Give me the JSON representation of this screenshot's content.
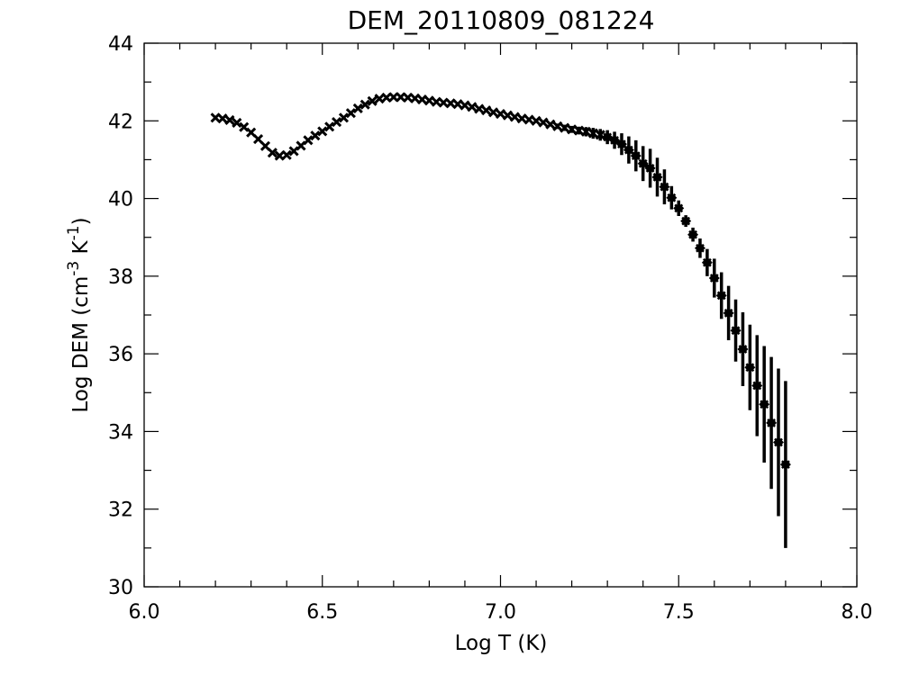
{
  "chart_data": {
    "type": "scatter",
    "title": "DEM_20110809_081224",
    "xlabel": "Log T (K)",
    "ylabel_parts": [
      "Log DEM (cm",
      "-3",
      " K",
      "-1",
      ")"
    ],
    "xlim": [
      6.0,
      8.0
    ],
    "ylim": [
      30,
      44
    ],
    "x_ticks": [
      "6.0",
      "6.5",
      "7.0",
      "7.5",
      "8.0"
    ],
    "x_tick_values": [
      6.0,
      6.5,
      7.0,
      7.5,
      8.0
    ],
    "y_ticks": [
      "30",
      "32",
      "34",
      "36",
      "38",
      "40",
      "42",
      "44"
    ],
    "y_tick_values": [
      30,
      32,
      34,
      36,
      38,
      40,
      42,
      44
    ],
    "grid": false,
    "marker_color": "#000000",
    "series": [
      {
        "marker": "x",
        "points": [
          [
            6.2,
            42.08,
            0.05
          ],
          [
            6.22,
            42.06,
            0.05
          ],
          [
            6.24,
            42.02,
            0.05
          ],
          [
            6.26,
            41.95,
            0.05
          ],
          [
            6.28,
            41.84,
            0.05
          ],
          [
            6.3,
            41.7,
            0.05
          ],
          [
            6.32,
            41.53,
            0.05
          ],
          [
            6.34,
            41.35,
            0.05
          ],
          [
            6.36,
            41.18,
            0.05
          ],
          [
            6.38,
            41.1,
            0.05
          ],
          [
            6.4,
            41.12,
            0.05
          ],
          [
            6.42,
            41.22,
            0.05
          ],
          [
            6.44,
            41.36,
            0.05
          ],
          [
            6.46,
            41.5,
            0.05
          ],
          [
            6.48,
            41.62,
            0.05
          ],
          [
            6.5,
            41.73,
            0.05
          ],
          [
            6.52,
            41.85,
            0.05
          ],
          [
            6.54,
            41.97,
            0.05
          ],
          [
            6.56,
            42.08,
            0.05
          ],
          [
            6.58,
            42.2,
            0.05
          ],
          [
            6.6,
            42.32,
            0.05
          ],
          [
            6.62,
            42.42,
            0.05
          ],
          [
            6.64,
            42.51,
            0.05
          ],
          [
            6.66,
            42.57,
            0.05
          ],
          [
            6.68,
            42.6,
            0.05
          ],
          [
            6.7,
            42.61,
            0.05
          ],
          [
            6.72,
            42.61,
            0.05
          ],
          [
            6.74,
            42.6,
            0.05
          ],
          [
            6.76,
            42.58,
            0.05
          ],
          [
            6.78,
            42.55,
            0.05
          ],
          [
            6.8,
            42.52,
            0.05
          ],
          [
            6.82,
            42.49,
            0.05
          ],
          [
            6.84,
            42.47,
            0.05
          ],
          [
            6.86,
            42.45,
            0.05
          ],
          [
            6.88,
            42.43,
            0.05
          ],
          [
            6.9,
            42.4,
            0.05
          ],
          [
            6.92,
            42.36,
            0.05
          ],
          [
            6.94,
            42.31,
            0.05
          ],
          [
            6.96,
            42.27,
            0.05
          ],
          [
            6.98,
            42.22,
            0.05
          ],
          [
            7.0,
            42.18,
            0.05
          ],
          [
            7.02,
            42.14,
            0.05
          ],
          [
            7.04,
            42.1,
            0.05
          ],
          [
            7.06,
            42.06,
            0.05
          ],
          [
            7.08,
            42.03,
            0.05
          ],
          [
            7.1,
            42.0,
            0.05
          ],
          [
            7.12,
            41.96,
            0.06
          ],
          [
            7.14,
            41.91,
            0.06
          ],
          [
            7.16,
            41.86,
            0.07
          ],
          [
            7.18,
            41.82,
            0.08
          ],
          [
            7.2,
            41.78,
            0.09
          ],
          [
            7.22,
            41.75,
            0.1
          ],
          [
            7.24,
            41.72,
            0.12
          ],
          [
            7.26,
            41.68,
            0.14
          ],
          [
            7.28,
            41.64,
            0.15
          ]
        ]
      },
      {
        "marker": "diamond",
        "points": [
          [
            7.3,
            41.58,
            0.18
          ],
          [
            7.32,
            41.5,
            0.22
          ],
          [
            7.34,
            41.4,
            0.28
          ],
          [
            7.36,
            41.25,
            0.35
          ],
          [
            7.38,
            41.1,
            0.4
          ],
          [
            7.4,
            40.9,
            0.45
          ],
          [
            7.42,
            40.78,
            0.5
          ],
          [
            7.44,
            40.55,
            0.5
          ],
          [
            7.46,
            40.3,
            0.45
          ],
          [
            7.48,
            40.02,
            0.3
          ],
          [
            7.5,
            39.75,
            0.2
          ],
          [
            7.52,
            39.42,
            0.15
          ],
          [
            7.54,
            39.07,
            0.18
          ],
          [
            7.56,
            38.72,
            0.25
          ],
          [
            7.58,
            38.35,
            0.35
          ],
          [
            7.6,
            37.95,
            0.5
          ],
          [
            7.62,
            37.5,
            0.6
          ],
          [
            7.64,
            37.05,
            0.7
          ],
          [
            7.66,
            36.6,
            0.8
          ],
          [
            7.68,
            36.12,
            0.95
          ],
          [
            7.7,
            35.65,
            1.1
          ],
          [
            7.72,
            35.18,
            1.3
          ],
          [
            7.74,
            34.7,
            1.5
          ],
          [
            7.76,
            34.22,
            1.7
          ],
          [
            7.78,
            33.72,
            1.9
          ],
          [
            7.8,
            33.15,
            2.15
          ]
        ]
      }
    ]
  }
}
